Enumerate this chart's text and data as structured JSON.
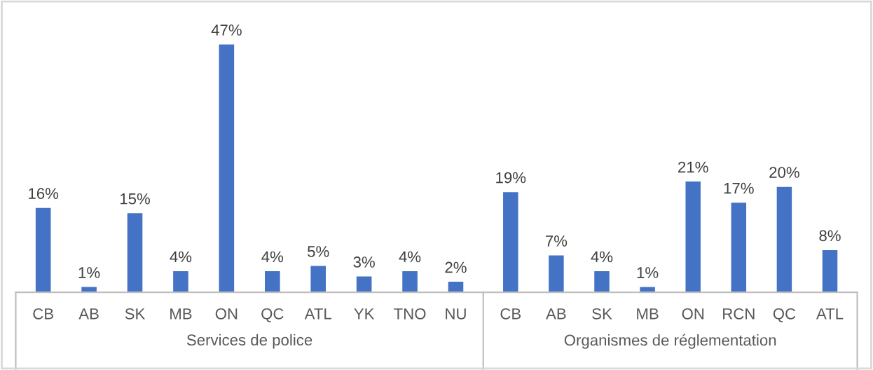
{
  "chart_data": [
    {
      "type": "bar",
      "xlabel": "Services de police",
      "categories": [
        "CB",
        "AB",
        "SK",
        "MB",
        "ON",
        "QC",
        "ATL",
        "YK",
        "TNO",
        "NU"
      ],
      "color": "#4472c4",
      "values": [
        16,
        1,
        15,
        4,
        47,
        4,
        5,
        3,
        4,
        2
      ],
      "value_labels": [
        "16%",
        "1%",
        "15%",
        "4%",
        "47%",
        "4%",
        "5%",
        "3%",
        "4%",
        "2%"
      ]
    },
    {
      "type": "bar",
      "xlabel": "Organismes de réglementation",
      "categories": [
        "CB",
        "AB",
        "SK",
        "MB",
        "ON",
        "RCN",
        "QC",
        "ATL"
      ],
      "color": "#4472c4",
      "values": [
        19,
        7,
        4,
        1,
        21,
        17,
        20,
        8
      ],
      "value_labels": [
        "19%",
        "7%",
        "4%",
        "1%",
        "21%",
        "17%",
        "20%",
        "8%"
      ]
    }
  ]
}
